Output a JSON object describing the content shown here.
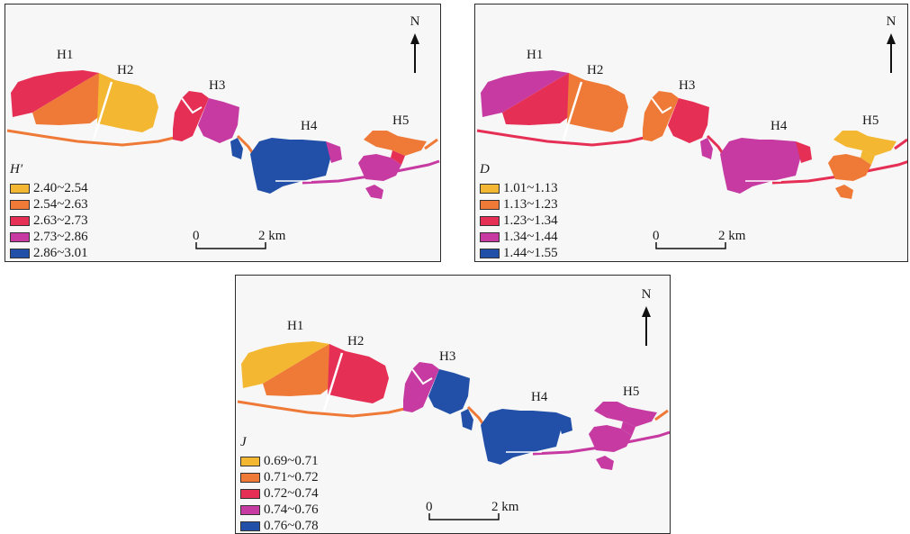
{
  "colors": {
    "class_1": "#f4b731",
    "class_2": "#ef7a37",
    "class_3": "#e62f55",
    "class_4": "#c63aa2",
    "class_5": "#2250a8",
    "accent": "#ef7a37"
  },
  "north_label": "N",
  "zone_labels": [
    "H1",
    "H2",
    "H3",
    "H4",
    "H5"
  ],
  "scale_bar": {
    "start": "0",
    "end": "2 km"
  },
  "panels": [
    {
      "legend_title": "H′",
      "classes": [
        "2.40~2.54",
        "2.54~2.63",
        "2.63~2.73",
        "2.73~2.86",
        "2.86~3.01"
      ],
      "zone_class": {
        "H1_west": 3,
        "H1_east": 2,
        "H2": 1,
        "H3": 4,
        "H3_west": 3,
        "H4": 5,
        "H4_east": 4,
        "H5": 4,
        "H5_north": 2,
        "H5_center": 3
      }
    },
    {
      "legend_title": "D",
      "classes": [
        "1.01~1.13",
        "1.13~1.23",
        "1.23~1.34",
        "1.34~1.44",
        "1.44~1.55"
      ],
      "zone_class": {
        "H1_west": 4,
        "H1_east": 3,
        "H2": 2,
        "H3": 3,
        "H3_west": 2,
        "H4": 4,
        "H4_east": 3,
        "H5": 2,
        "H5_north": 1,
        "H5_center": 1
      }
    },
    {
      "legend_title": "J",
      "classes": [
        "0.69~0.71",
        "0.71~0.72",
        "0.72~0.74",
        "0.74~0.76",
        "0.76~0.78"
      ],
      "zone_class": {
        "H1_west": 1,
        "H1_east": 2,
        "H2": 3,
        "H3": 5,
        "H3_west": 4,
        "H4": 5,
        "H4_east": 5,
        "H5": 4,
        "H5_north": 4,
        "H5_center": 4
      }
    }
  ]
}
